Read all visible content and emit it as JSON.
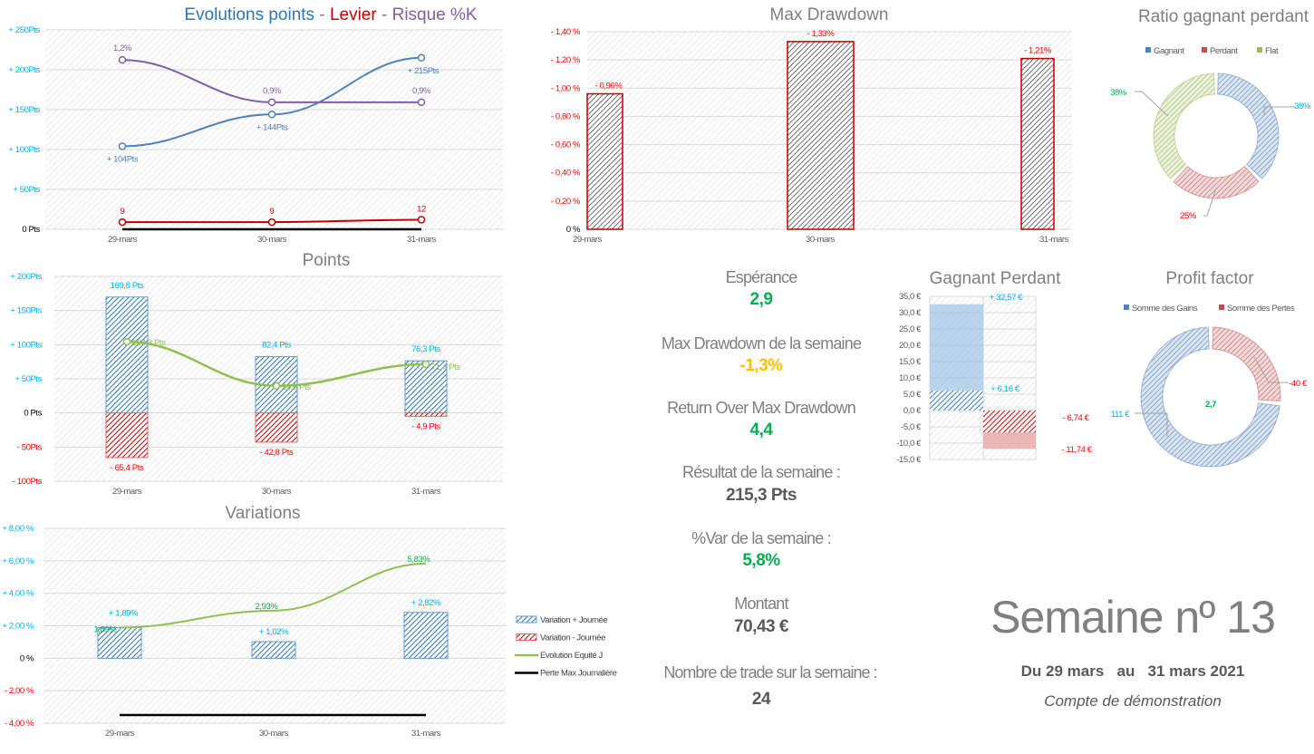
{
  "colors": {
    "blue": "#5b9bd5",
    "blue_dark": "#2e75b6",
    "red": "#c00000",
    "red_light": "#ff0000",
    "purple": "#7f5fa8",
    "green_line": "#92c050",
    "green_value": "#00b050",
    "yellow": "#ffc000",
    "cyan": "#00b0f0",
    "gray": "#7f7f7f"
  },
  "chart_data": [
    {
      "id": "evolution",
      "type": "line",
      "title_parts": [
        "Evolutions points",
        " - ",
        "Levier",
        " - ",
        "Risque %K"
      ],
      "categories": [
        "29-mars",
        "30-mars",
        "31-mars"
      ],
      "ylim": [
        0,
        250
      ],
      "y_ticks": [
        0,
        50,
        100,
        150,
        200,
        250
      ],
      "y_tick_labels": [
        "0 Pts",
        "+ 50Pts",
        "+ 100Pts",
        "+ 150Pts",
        "+ 200Pts",
        "+ 250Pts"
      ],
      "grid": true,
      "series": [
        {
          "name": "Evolutions points",
          "values": [
            104,
            144,
            215
          ],
          "labels": [
            "+ 104Pts",
            "+ 144Pts",
            "+ 215Pts"
          ],
          "color": "#4f81bd"
        },
        {
          "name": "Risque %K",
          "values": [
            1.2,
            0.9,
            0.9
          ],
          "labels": [
            "1,2%",
            "0,9%",
            "0,9%"
          ],
          "color": "#7f5fa8",
          "axis": "secondary"
        },
        {
          "name": "Levier",
          "values": [
            9,
            9,
            12
          ],
          "labels": [
            "9",
            "9",
            "12"
          ],
          "color": "#c00000"
        },
        {
          "values": [
            0,
            0,
            0
          ],
          "color": "#000000"
        }
      ]
    },
    {
      "id": "points",
      "type": "bar",
      "title": "Points",
      "categories": [
        "29-mars",
        "30-mars",
        "31-mars"
      ],
      "ylim": [
        -100,
        200
      ],
      "y_ticks": [
        -100,
        -50,
        0,
        50,
        100,
        150,
        200
      ],
      "y_tick_labels": [
        "- 100Pts",
        "- 50Pts",
        "0 Pts",
        "+ 50Pts",
        "+ 100Pts",
        "+ 150Pts",
        "+ 200Pts"
      ],
      "grid": true,
      "series": [
        {
          "values": [
            169.8,
            82.4,
            76.3
          ],
          "labels": [
            "169,8 Pts",
            "82,4 Pts",
            "76,3 Pts"
          ],
          "color": "#2e75b6"
        },
        {
          "values": [
            -65.4,
            -42.8,
            -4.9
          ],
          "labels": [
            "- 65,4 Pts",
            "- 42,8 Pts",
            "- 4,9 Pts"
          ],
          "color": "#c00000"
        },
        {
          "type": "line",
          "values": [
            104.3,
            39.6,
            71.4
          ],
          "labels": [
            "104,3 Pts",
            "39,6 Pts",
            "71,4 Pts"
          ],
          "color": "#92c050"
        }
      ]
    },
    {
      "id": "variations",
      "type": "bar",
      "title": "Variations",
      "categories": [
        "29-mars",
        "30-mars",
        "31-mars"
      ],
      "ylim": [
        -4,
        8
      ],
      "y_ticks": [
        -4,
        -2,
        0,
        2,
        4,
        6,
        8
      ],
      "y_tick_labels": [
        "- 4,00 %",
        "- 2,00 %",
        "0 %",
        "+ 2,00 %",
        "+ 4,00 %",
        "+ 6,00 %",
        "+ 8,00 %"
      ],
      "grid": true,
      "legend": "right",
      "series": [
        {
          "name": "Variation + Journée",
          "values": [
            1.89,
            1.02,
            2.82
          ],
          "labels": [
            "+ 1,89%",
            "+ 1,02%",
            "+ 2,82%"
          ],
          "color": "#2e75b6"
        },
        {
          "name": "Variation - Journée",
          "values": [
            0,
            0,
            0
          ],
          "color": "#c00000"
        },
        {
          "name": "Evolution  Equité J",
          "type": "line",
          "values": [
            1.89,
            2.93,
            5.83
          ],
          "labels": [
            "1,89%",
            "2,93%",
            "5,83%"
          ],
          "color": "#92c050"
        },
        {
          "name": "Perte Max Journalière",
          "type": "line",
          "values": [
            -3.5,
            -3.5,
            -3.5
          ],
          "color": "#000000"
        }
      ]
    },
    {
      "id": "max-drawdown",
      "type": "bar",
      "title": "Max Drawdown",
      "categories": [
        "29-mars",
        "30-mars",
        "31-mars"
      ],
      "ylim": [
        0,
        1.4
      ],
      "y_ticks": [
        0,
        0.2,
        0.4,
        0.6,
        0.8,
        1.0,
        1.2,
        1.4
      ],
      "y_tick_labels": [
        "0 %",
        "- 0,20 %",
        "- 0,40 %",
        "- 0,60 %",
        "- 0,80 %",
        "- 1,00 %",
        "- 1,20 %",
        "- 1,40 %"
      ],
      "grid": true,
      "series": [
        {
          "values": [
            0.96,
            1.33,
            1.21
          ],
          "labels": [
            "- 0,96%",
            "- 1,33%",
            "- 1,21%"
          ],
          "color": "#c00000"
        }
      ]
    },
    {
      "id": "ratio",
      "type": "pie",
      "title": "Ratio gagnant perdant",
      "legend": "top",
      "slices": [
        {
          "name": "Gagnant",
          "value": 37.5,
          "label": "38%",
          "color": "#4f81bd",
          "label_color": "#00b0f0"
        },
        {
          "name": "Perdant",
          "value": 25,
          "label": "25%",
          "color": "#c0504d",
          "label_color": "#ff0000"
        },
        {
          "name": "Flat",
          "value": 37.5,
          "label": "38%",
          "color": "#9bbb59",
          "label_color": "#00b050"
        }
      ]
    },
    {
      "id": "gagnant-perdant",
      "type": "bar",
      "title": "Gagnant Perdant",
      "ylim": [
        -15,
        35
      ],
      "y_ticks": [
        -15,
        -10,
        -5,
        0,
        5,
        10,
        15,
        20,
        25,
        30,
        35
      ],
      "y_tick_labels": [
        "-15,0 €",
        "-10,0 €",
        "-5,0 €",
        "0,0 €",
        "5,0 €",
        "10,0 €",
        "15,0 €",
        "20,0 €",
        "25,0 €",
        "30,0 €",
        "35,0 €"
      ],
      "grid": true,
      "series": [
        {
          "values": [
            32.57,
            -11.74
          ],
          "labels": [
            "+ 32,57 €",
            "- 11,74 €"
          ]
        },
        {
          "values": [
            6.16,
            -6.74
          ],
          "labels": [
            "+ 6,16 €",
            "- 6,74 €"
          ]
        }
      ]
    },
    {
      "id": "profit-factor",
      "type": "pie",
      "title": "Profit factor",
      "legend": "top",
      "center_label": "2,7",
      "slices": [
        {
          "name": "Somme des Pertes",
          "value": 40,
          "label": "-40 €",
          "color": "#c0504d",
          "label_color": "#ff0000"
        },
        {
          "name": "Somme des Gains",
          "value": 111,
          "label": "111 €",
          "color": "#4f81bd",
          "label_color": "#00b0f0"
        }
      ]
    }
  ],
  "stats": [
    {
      "label": "Espérance",
      "value": "2,9",
      "color": "#00b050"
    },
    {
      "label": "Max Drawdown de la semaine",
      "value": "-1,3%",
      "color": "#ffc000"
    },
    {
      "label": "Return Over Max Drawdown",
      "value": "4,4",
      "color": "#00b050"
    },
    {
      "label": "Résultat de la semaine :",
      "value": "215,3 Pts",
      "color": "#595959"
    },
    {
      "label": "%Var de la semaine :",
      "value": "5,8%",
      "color": "#00b050"
    },
    {
      "label": "Montant",
      "value": "70,43 €",
      "color": "#595959"
    },
    {
      "label": "Nombre de trade sur la semaine :",
      "value": "24",
      "color": "#595959"
    }
  ],
  "week": {
    "title": "Semaine nº 13",
    "from_prefix": "Du",
    "from": "29 mars",
    "to_prefix": "au",
    "to": "31 mars 2021",
    "account": "Compte de démonstration"
  }
}
